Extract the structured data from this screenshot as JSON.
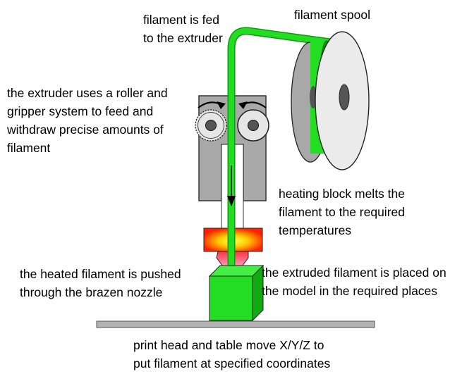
{
  "colors": {
    "filament": "#22dd22",
    "filament_dark": "#119911",
    "frame": "#a9a9a9",
    "spool": "#a8a8a8",
    "table": "#b3b3b3",
    "hot": "#ff2200",
    "warm": "#ffdd00"
  },
  "labels": {
    "feed": [
      "filament is fed",
      "to the extruder"
    ],
    "spool": [
      "filament spool"
    ],
    "extruder": [
      "the  extruder uses a roller and",
      "gripper system to feed and",
      "withdraw precise amounts of",
      "filament"
    ],
    "heating": [
      "heating block melts the",
      "filament to the required",
      "temperatures"
    ],
    "nozzle": [
      "the heated filament is pushed",
      "through the brazen nozzle"
    ],
    "placed": [
      "the extruded filament is placed on",
      "the model in the required places"
    ],
    "movement": [
      "print head and table move X/Y/Z to",
      "put filament at specified coordinates"
    ]
  }
}
